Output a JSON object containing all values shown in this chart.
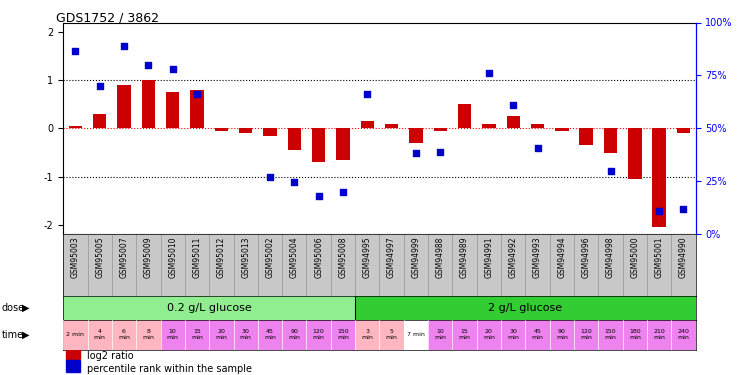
{
  "title": "GDS1752 / 3862",
  "samples": [
    "GSM95003",
    "GSM95005",
    "GSM95007",
    "GSM95009",
    "GSM95010",
    "GSM95011",
    "GSM95012",
    "GSM95013",
    "GSM95002",
    "GSM95004",
    "GSM95006",
    "GSM95008",
    "GSM94995",
    "GSM94997",
    "GSM94999",
    "GSM94988",
    "GSM94989",
    "GSM94991",
    "GSM94992",
    "GSM94993",
    "GSM94994",
    "GSM94996",
    "GSM94998",
    "GSM95000",
    "GSM95001",
    "GSM94990"
  ],
  "log2_ratio": [
    0.05,
    0.3,
    0.9,
    1.0,
    0.75,
    0.8,
    -0.05,
    -0.1,
    -0.15,
    -0.45,
    -0.7,
    -0.65,
    0.15,
    0.1,
    -0.3,
    -0.05,
    0.5,
    0.1,
    0.25,
    0.1,
    -0.05,
    -0.35,
    -0.5,
    -1.05,
    -2.05,
    -0.1
  ],
  "percentile_rank": [
    90,
    72,
    93,
    83,
    81,
    68,
    null,
    null,
    25,
    22,
    15,
    17,
    68,
    null,
    37,
    38,
    null,
    79,
    62,
    40,
    null,
    null,
    28,
    null,
    7,
    8
  ],
  "dose_groups": [
    {
      "label": "0.2 g/L glucose",
      "start": 0,
      "end": 11,
      "color": "#90EE90"
    },
    {
      "label": "2 g/L glucose",
      "start": 12,
      "end": 25,
      "color": "#32CD32"
    }
  ],
  "time_labels": [
    "2 min",
    "4\nmin",
    "6\nmin",
    "8\nmin",
    "10\nmin",
    "15\nmin",
    "20\nmin",
    "30\nmin",
    "45\nmin",
    "90\nmin",
    "120\nmin",
    "150\nmin",
    "3\nmin",
    "5\nmin",
    "7 min",
    "10\nmin",
    "15\nmin",
    "20\nmin",
    "30\nmin",
    "45\nmin",
    "90\nmin",
    "120\nmin",
    "150\nmin",
    "180\nmin",
    "210\nmin",
    "240\nmin"
  ],
  "time_colors": [
    "#FFB6C1",
    "#FFB6C1",
    "#FFB6C1",
    "#FFB6C1",
    "#EE82EE",
    "#EE82EE",
    "#EE82EE",
    "#EE82EE",
    "#EE82EE",
    "#EE82EE",
    "#EE82EE",
    "#EE82EE",
    "#FFB6C1",
    "#FFB6C1",
    "#FFFFFF",
    "#EE82EE",
    "#EE82EE",
    "#EE82EE",
    "#EE82EE",
    "#EE82EE",
    "#EE82EE",
    "#EE82EE",
    "#EE82EE",
    "#EE82EE",
    "#EE82EE",
    "#EE82EE"
  ],
  "bar_color": "#CC0000",
  "scatter_color": "#0000CC",
  "ylim_left": [
    -2.2,
    2.2
  ],
  "ylim_right": [
    0,
    100
  ],
  "yticks_left": [
    -2,
    -1,
    0,
    1,
    2
  ],
  "yticks_right": [
    0,
    25,
    50,
    75,
    100
  ],
  "ytick_labels_right": [
    "0%",
    "25%",
    "50%",
    "75%",
    "100%"
  ],
  "sample_bg_color": "#C8C8C8",
  "sample_border_color": "#888888"
}
